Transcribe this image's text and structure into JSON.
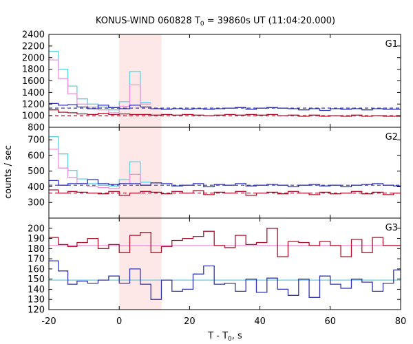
{
  "chart_data": {
    "type": "line",
    "title_main": "KONUS-WIND 060828 T",
    "title_sub": "0",
    "title_rest": " = 39860s UT (11:04:20.000)",
    "xlabel_main": "T - T",
    "xlabel_sub": "0",
    "xlabel_rest": ", s",
    "ylabel": "counts / sec",
    "xlim": [
      -20,
      80
    ],
    "xticks": [
      -20,
      0,
      20,
      40,
      60,
      80
    ],
    "highlight_interval": [
      0,
      12
    ],
    "colors": {
      "high_res": "#5ecfe0",
      "high_res_alt": "#f08fd8",
      "lightcurve_a": "#2f34b5",
      "lightcurve_b": "#b0102a",
      "highlight": "#fde7e7"
    },
    "bin_edges": [
      -20,
      -17.3,
      -14.6,
      -12.0,
      -9.0,
      -6.0,
      -3.0,
      0,
      3.0,
      6.0,
      9.0,
      12.0,
      15.0,
      18.0,
      21.0,
      24.0,
      27.0,
      30.0,
      33.0,
      36.0,
      39.0,
      42.0,
      45.0,
      48.0,
      51.0,
      54.0,
      57.0,
      60.0,
      63.0,
      66.0,
      69.0,
      72.0,
      75.0,
      78.0,
      80.0
    ],
    "panels": [
      {
        "label": "G1",
        "ylim": [
          800,
          2400
        ],
        "yticks": [
          800,
          1000,
          1200,
          1400,
          1600,
          1800,
          2000,
          2200,
          2400
        ],
        "background_a": 1130,
        "background_b": 1000,
        "series": [
          {
            "style": "high_res",
            "values": [
              2110,
              1800,
              1510,
              1290,
              1200,
              1150,
              1100,
              1240,
              1760,
              1230
            ]
          },
          {
            "style": "high_res_alt",
            "values": [
              1960,
              1640,
              1380,
              1200,
              1150,
              1100,
              1050,
              1160,
              1530,
              1200
            ]
          },
          {
            "style": "lightcurve_a",
            "values": [
              1210,
              1180,
              1190,
              1150,
              1120,
              1180,
              1140,
              1120,
              1180,
              1150,
              1120,
              1110,
              1120,
              1110,
              1120,
              1110,
              1120,
              1130,
              1140,
              1110,
              1130,
              1140,
              1130,
              1120,
              1100,
              1120,
              1090,
              1120,
              1110,
              1120,
              1100,
              1120,
              1110,
              1110
            ]
          },
          {
            "style": "lightcurve_b",
            "values": [
              1100,
              1060,
              1050,
              1030,
              1020,
              1040,
              1020,
              1030,
              1020,
              1020,
              1010,
              1020,
              1010,
              1020,
              1010,
              1000,
              1010,
              1020,
              1010,
              1020,
              1010,
              1020,
              1000,
              1010,
              990,
              1010,
              990,
              1000,
              990,
              1010,
              990,
              1000,
              990,
              990
            ]
          }
        ]
      },
      {
        "label": "G2",
        "ylim": [
          200,
          780
        ],
        "yticks": [
          300,
          400,
          500,
          600,
          700
        ],
        "background_a": 410,
        "background_b": 360,
        "series": [
          {
            "style": "high_res",
            "values": [
              720,
              610,
              505,
              450,
              420,
              410,
              405,
              445,
              560,
              430
            ]
          },
          {
            "style": "high_res_alt",
            "values": [
              640,
              520,
              460,
              420,
              400,
              395,
              390,
              420,
              480,
              410
            ]
          },
          {
            "style": "lightcurve_a",
            "values": [
              440,
              410,
              420,
              420,
              445,
              420,
              415,
              420,
              420,
              410,
              425,
              420,
              405,
              410,
              420,
              400,
              415,
              410,
              420,
              405,
              410,
              415,
              410,
              400,
              410,
              415,
              405,
              410,
              400,
              410,
              415,
              420,
              410,
              405
            ]
          },
          {
            "style": "lightcurve_b",
            "values": [
              380,
              360,
              370,
              365,
              360,
              355,
              370,
              345,
              360,
              370,
              365,
              355,
              370,
              360,
              375,
              350,
              365,
              360,
              370,
              345,
              360,
              365,
              355,
              370,
              360,
              350,
              365,
              355,
              360,
              370,
              355,
              365,
              350,
              360
            ]
          }
        ]
      },
      {
        "label": "G3",
        "ylim": [
          120,
          210
        ],
        "yticks": [
          120,
          130,
          140,
          150,
          160,
          170,
          180,
          190,
          200
        ],
        "background_a": 149,
        "background_b": 183,
        "series": [
          {
            "style": "lightcurve_a",
            "values": [
              168,
              158,
              145,
              148,
              146,
              149,
              153,
              146,
              160,
              145,
              130,
              149,
              138,
              140,
              155,
              163,
              145,
              146,
              138,
              150,
              137,
              151,
              140,
              134,
              150,
              132,
              153,
              145,
              141,
              150,
              147,
              138,
              146,
              159
            ]
          },
          {
            "style": "lightcurve_b",
            "values": [
              191,
              184,
              182,
              186,
              190,
              180,
              184,
              176,
              193,
              196,
              176,
              182,
              188,
              190,
              192,
              197,
              183,
              181,
              193,
              184,
              186,
              200,
              172,
              187,
              186,
              183,
              187,
              183,
              172,
              189,
              176,
              191,
              183,
              183
            ]
          }
        ]
      }
    ]
  }
}
